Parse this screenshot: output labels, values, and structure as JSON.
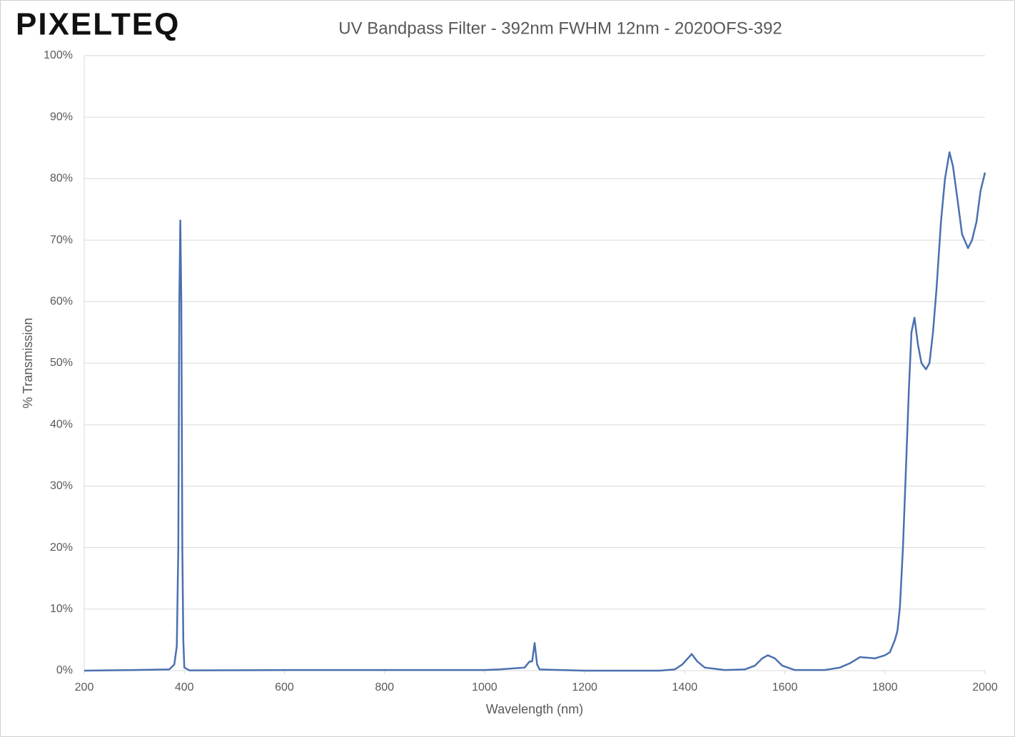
{
  "chart_data": {
    "type": "line",
    "logo": "PIXELTEQ",
    "title": "UV Bandpass Filter - 392nm FWHM 12nm - 2020OFS-392",
    "x_label": "Wavelength (nm)",
    "y_label": "% Transmission",
    "xlim": [
      200,
      2000
    ],
    "xticks": [
      200,
      400,
      600,
      800,
      1000,
      1200,
      1400,
      1600,
      1800,
      2000
    ],
    "ylim": [
      0,
      100
    ],
    "yticks": [
      {
        "value": 0,
        "label": "0%"
      },
      {
        "value": 10,
        "label": "10%"
      },
      {
        "value": 20,
        "label": "20%"
      },
      {
        "value": 30,
        "label": "30%"
      },
      {
        "value": 40,
        "label": "40%"
      },
      {
        "value": 50,
        "label": "50%"
      },
      {
        "value": 60,
        "label": "60%"
      },
      {
        "value": 70,
        "label": "70%"
      },
      {
        "value": 80,
        "label": "80%"
      },
      {
        "value": 90,
        "label": "90%"
      },
      {
        "value": 100,
        "label": "100%"
      }
    ],
    "grid": true,
    "x": [
      200,
      300,
      370,
      380,
      385,
      388,
      390,
      392,
      394,
      396,
      398,
      400,
      410,
      600,
      1000,
      1030,
      1080,
      1090,
      1095,
      1100,
      1105,
      1110,
      1200,
      1350,
      1380,
      1395,
      1414,
      1425,
      1440,
      1480,
      1520,
      1540,
      1555,
      1566,
      1580,
      1595,
      1620,
      1680,
      1710,
      1730,
      1750,
      1780,
      1800,
      1810,
      1820,
      1825,
      1830,
      1836,
      1843,
      1848,
      1853,
      1859,
      1866,
      1873,
      1882,
      1889,
      1896,
      1903,
      1912,
      1920,
      1929,
      1936,
      1946,
      1954,
      1966,
      1974,
      1983,
      1991,
      2000
    ],
    "series": [
      {
        "name": "Transmission",
        "color": "#4a70b0",
        "values": [
          0,
          0.1,
          0.2,
          1,
          4,
          20,
          60,
          73.2,
          60,
          20,
          5,
          0.5,
          0.05,
          0.1,
          0.1,
          0.2,
          0.5,
          1.5,
          1.5,
          4.5,
          1,
          0.2,
          0,
          0,
          0.2,
          1,
          2.7,
          1.5,
          0.5,
          0.1,
          0.2,
          0.8,
          2,
          2.5,
          2,
          0.8,
          0.1,
          0.1,
          0.5,
          1.2,
          2.2,
          2,
          2.5,
          3,
          5,
          6.5,
          10.4,
          20,
          35,
          46,
          55,
          57.4,
          53,
          50,
          49,
          50,
          55,
          62,
          73,
          80,
          84.3,
          82,
          76,
          71,
          68.7,
          70,
          73,
          78,
          81
        ]
      }
    ]
  }
}
